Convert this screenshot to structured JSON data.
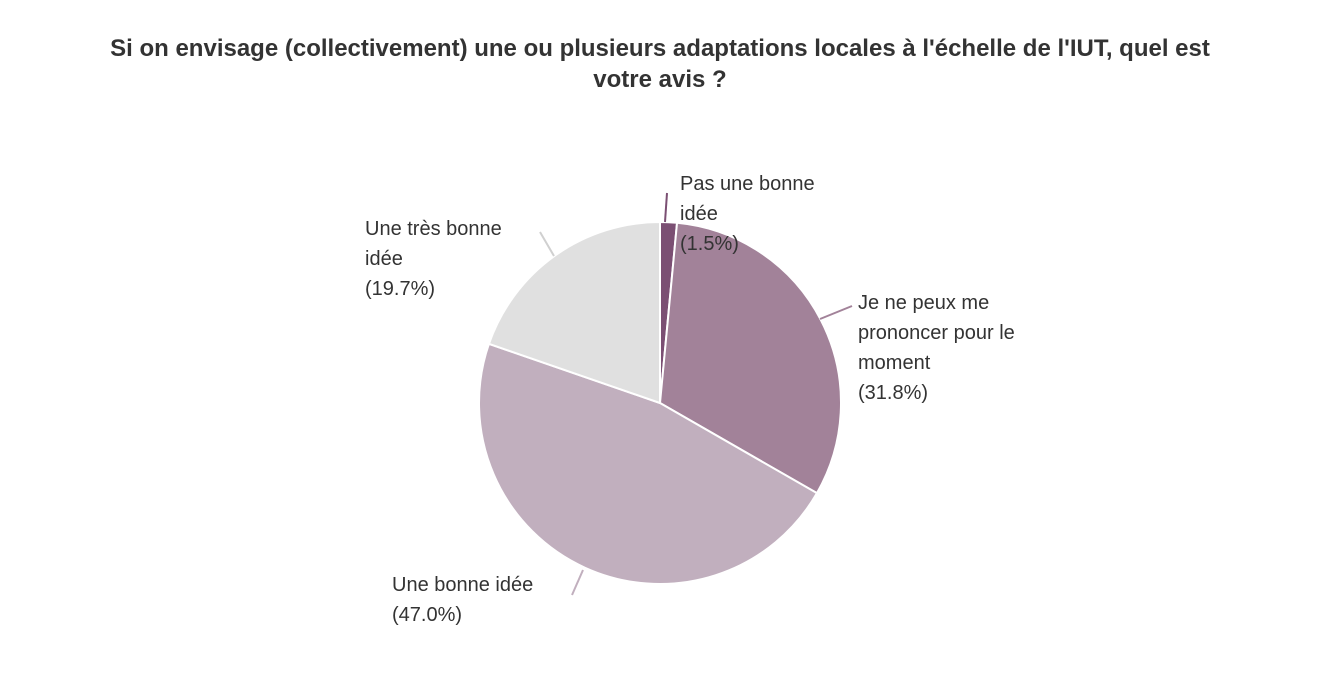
{
  "chart_data": {
    "type": "pie",
    "title_lines": [
      "Si on envisage (collectivement) une ou plusieurs adaptations locales à l'échelle de l'IUT, quel est",
      "votre avis ?"
    ],
    "slices": [
      {
        "label_lines": [
          "Pas une bonne",
          "idée",
          "(1.5%)"
        ],
        "value": 1.5,
        "color": "#7b4f73"
      },
      {
        "label_lines": [
          "Je ne peux me",
          "prononcer pour le",
          "moment",
          "(31.8%)"
        ],
        "value": 31.8,
        "color": "#a28299"
      },
      {
        "label_lines": [
          "Une bonne idée",
          "(47.0%)"
        ],
        "value": 47.0,
        "color": "#c1afbe"
      },
      {
        "label_lines": [
          "Une très bonne",
          "idée",
          "(19.7%)"
        ],
        "value": 19.7,
        "color": "#e0e0e0"
      }
    ]
  }
}
